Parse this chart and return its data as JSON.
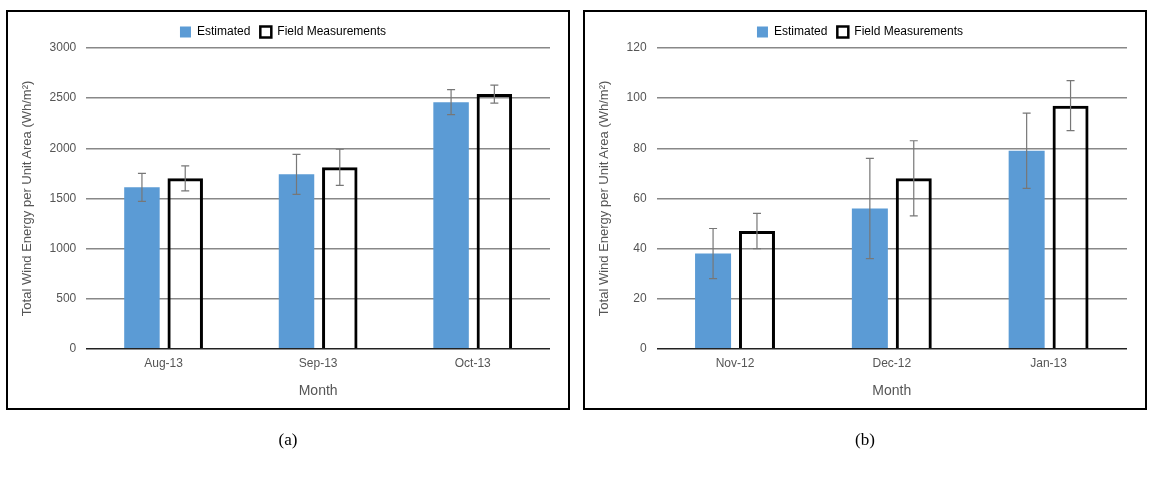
{
  "chart_data": [
    {
      "type": "bar",
      "categories": [
        "Aug-13",
        "Sep-13",
        "Oct-13"
      ],
      "xlabel": "Month",
      "ylabel": "Total Wind Energy per Unit Area (Wh/m²)",
      "ylim": [
        0,
        3000
      ],
      "yticks": [
        0,
        500,
        1000,
        1500,
        2000,
        2500,
        3000
      ],
      "grid": "y",
      "legend": "top",
      "annotations": [
        "(a)"
      ],
      "series": [
        {
          "name": "Estimated",
          "color": "#5b9bd5",
          "values": [
            1610,
            1740,
            2460
          ],
          "errors": [
            140,
            200,
            125
          ]
        },
        {
          "name": "Field Measurements",
          "color": "#000000",
          "values": [
            1700,
            1810,
            2540
          ],
          "errors": [
            125,
            180,
            90
          ]
        }
      ]
    },
    {
      "type": "bar",
      "categories": [
        "Nov-12",
        "Dec-12",
        "Jan-13"
      ],
      "xlabel": "Month",
      "ylabel": "Total Wind Energy per Unit Area (Wh/m²)",
      "ylim": [
        0,
        120
      ],
      "yticks": [
        0,
        20,
        40,
        60,
        80,
        100,
        120
      ],
      "grid": "y",
      "legend": "top",
      "annotations": [
        "(b)"
      ],
      "series": [
        {
          "name": "Estimated",
          "color": "#5b9bd5",
          "values": [
            38,
            56,
            79
          ],
          "errors": [
            10,
            20,
            15
          ]
        },
        {
          "name": "Field Measurements",
          "color": "#000000",
          "values": [
            47,
            68,
            97
          ],
          "errors": [
            7,
            15,
            10
          ]
        }
      ]
    }
  ]
}
